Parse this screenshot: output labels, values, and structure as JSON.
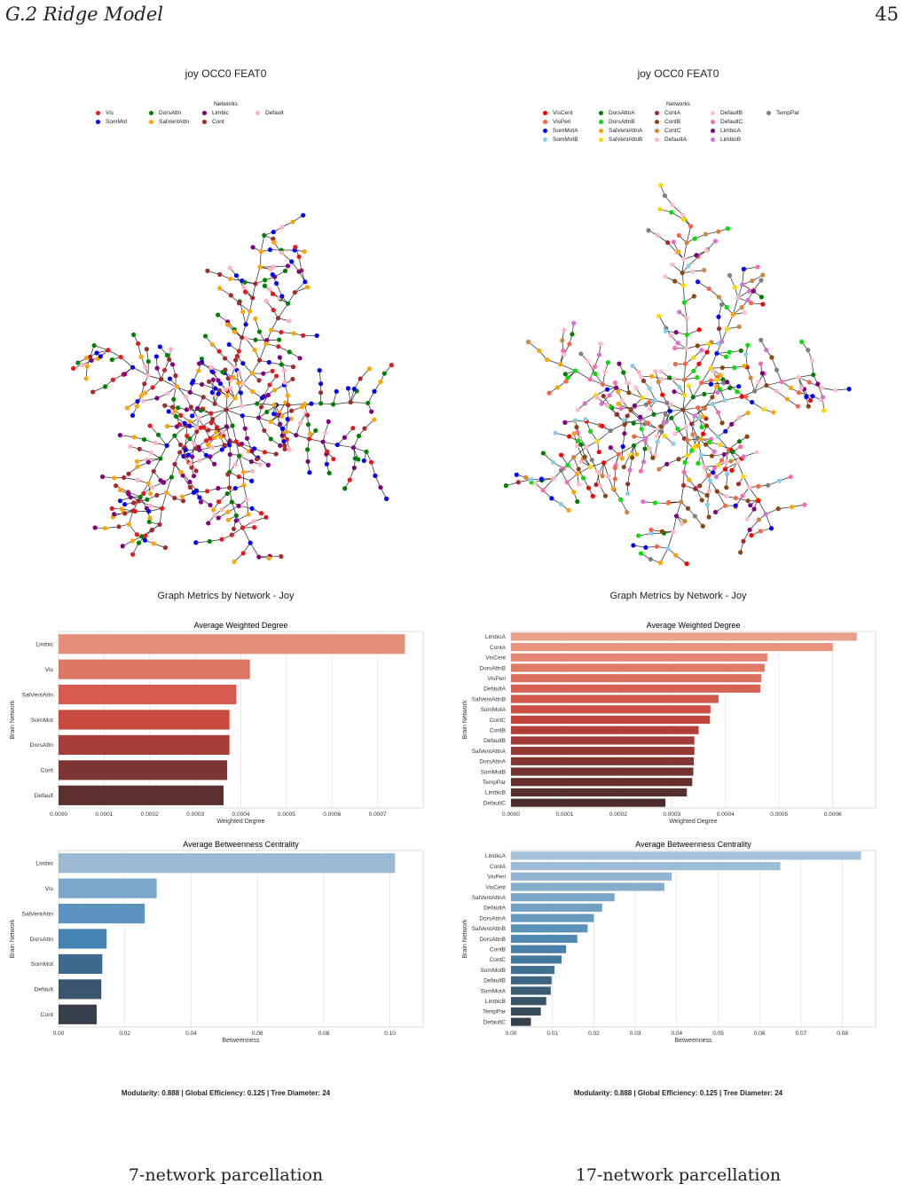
{
  "header": {
    "section": "G.2   Ridge Model",
    "page_number": "45"
  },
  "panels": [
    {
      "graph_title": "joy OCC0 FEAT0",
      "legend_title": "Networks",
      "legend": [
        {
          "label": "Vis",
          "color": "#e41a1c"
        },
        {
          "label": "SomMot",
          "color": "#0000ff"
        },
        {
          "label": "DorsAttn",
          "color": "#008000"
        },
        {
          "label": "SalVentAttn",
          "color": "#ffa500"
        },
        {
          "label": "Limbic",
          "color": "#800080"
        },
        {
          "label": "Cont",
          "color": "#a52a2a"
        },
        {
          "label": "Default",
          "color": "#ffb6c1"
        }
      ],
      "suptitle": "Graph Metrics by Network - Joy",
      "stats": "Modularity: 0.888    |    Global Efficiency: 0.125    |    Tree Diameter: 24",
      "caption": "7-network parcellation"
    },
    {
      "graph_title": "joy OCC0 FEAT0",
      "legend_title": "Networks",
      "legend": [
        {
          "label": "VisCent",
          "color": "#ff0000"
        },
        {
          "label": "VisPeri",
          "color": "#ff6347"
        },
        {
          "label": "SomMotA",
          "color": "#0000ff"
        },
        {
          "label": "SomMotB",
          "color": "#87ceeb"
        },
        {
          "label": "DorsAttnA",
          "color": "#008000"
        },
        {
          "label": "DorsAttnB",
          "color": "#00e000"
        },
        {
          "label": "SalVentAttnA",
          "color": "#ffa500"
        },
        {
          "label": "SalVentAttnB",
          "color": "#ffd700"
        },
        {
          "label": "ContA",
          "color": "#a52a2a"
        },
        {
          "label": "ContB",
          "color": "#8b4513"
        },
        {
          "label": "ContC",
          "color": "#cd853f"
        },
        {
          "label": "DefaultA",
          "color": "#ffb6c1"
        },
        {
          "label": "DefaultB",
          "color": "#ffc0cb"
        },
        {
          "label": "DefaultC",
          "color": "#ff69b4"
        },
        {
          "label": "LimbicA",
          "color": "#800080"
        },
        {
          "label": "LimbicB",
          "color": "#da70d6"
        },
        {
          "label": "TempPar",
          "color": "#808080"
        }
      ],
      "suptitle": "Graph Metrics by Network - Joy",
      "stats": "Modularity: 0.888    |    Global Efficiency: 0.125    |    Tree Diameter: 24",
      "caption": "17-network parcellation"
    }
  ],
  "chart_data": [
    {
      "type": "bar",
      "orientation": "horizontal",
      "title": "Average Weighted Degree",
      "xlabel": "Weighted Degree",
      "ylabel": "Brain Network",
      "categories": [
        "Limbic",
        "Vis",
        "SalVentAttn",
        "SomMot",
        "DorsAttn",
        "Cont",
        "Default"
      ],
      "values": [
        0.00076,
        0.00042,
        0.00039,
        0.000375,
        0.000375,
        0.00037,
        0.000362
      ],
      "xlim": [
        0,
        0.0008
      ],
      "xticks": [
        "0.0000",
        "0.0001",
        "0.0002",
        "0.0003",
        "0.0004",
        "0.0005",
        "0.0006",
        "0.0007"
      ],
      "palette": [
        "#e48f79",
        "#dd7563",
        "#d65b4e",
        "#c94a3e",
        "#a63d39",
        "#7d3632",
        "#5b2f2d"
      ]
    },
    {
      "type": "bar",
      "orientation": "horizontal",
      "title": "Average Betweenness Centrality",
      "xlabel": "Betweenness",
      "ylabel": "Brain Network",
      "categories": [
        "Limbic",
        "Vis",
        "SalVentAttn",
        "DorsAttn",
        "SomMot",
        "Default",
        "Cont"
      ],
      "values": [
        0.1015,
        0.0296,
        0.026,
        0.0145,
        0.0132,
        0.0129,
        0.0115
      ],
      "xlim": [
        0,
        0.11
      ],
      "xticks": [
        "0.00",
        "0.02",
        "0.04",
        "0.06",
        "0.08",
        "0.10"
      ],
      "palette": [
        "#9ab9d3",
        "#7ba7cb",
        "#5b93c0",
        "#4782b4",
        "#3e6a8f",
        "#3a566f",
        "#373f4a"
      ]
    },
    {
      "type": "bar",
      "orientation": "horizontal",
      "title": "Average Weighted Degree",
      "xlabel": "Weighted Degree",
      "ylabel": "Brain Network",
      "categories": [
        "LimbicA",
        "ContA",
        "VisCent",
        "DorsAttnB",
        "VisPeri",
        "DefaultA",
        "SalVentAttnB",
        "SomMotA",
        "ContC",
        "ContB",
        "DefaultB",
        "SalVentAttnA",
        "DorsAttnA",
        "SomMotB",
        "TempPar",
        "LimbicB",
        "DefaultC"
      ],
      "values": [
        0.000645,
        0.0006,
        0.000478,
        0.000473,
        0.000467,
        0.000465,
        0.000387,
        0.000372,
        0.000371,
        0.00035,
        0.000342,
        0.000342,
        0.000341,
        0.00034,
        0.000338,
        0.000328,
        0.000288
      ],
      "xlim": [
        0,
        0.00068
      ],
      "xticks": [
        "0.0000",
        "0.0001",
        "0.0002",
        "0.0003",
        "0.0004",
        "0.0005",
        "0.0006"
      ],
      "palette": [
        "#eba08a",
        "#e7937e",
        "#e38672",
        "#df7a67",
        "#db6e5d",
        "#d66253",
        "#d1574a",
        "#cb4c42",
        "#c1453d",
        "#b23f39",
        "#a33b36",
        "#933833",
        "#833530",
        "#73322e",
        "#64302c",
        "#562e2b",
        "#4a2b2a"
      ]
    },
    {
      "type": "bar",
      "orientation": "horizontal",
      "title": "Average Betweenness Centrality",
      "xlabel": "Betweenness",
      "ylabel": "Brain Network",
      "categories": [
        "LimbicA",
        "ContA",
        "VisPeri",
        "VisCent",
        "SalVentAttnA",
        "DefaultA",
        "DorsAttnA",
        "SalVentAttnB",
        "DorsAttnB",
        "ContB",
        "ContC",
        "SomMotB",
        "DefaultB",
        "SomMotA",
        "LimbicB",
        "TempPar",
        "DefaultC"
      ],
      "values": [
        0.0845,
        0.065,
        0.0388,
        0.037,
        0.025,
        0.022,
        0.02,
        0.0185,
        0.016,
        0.0133,
        0.0122,
        0.0105,
        0.0098,
        0.0096,
        0.0085,
        0.0072,
        0.0048
      ],
      "xlim": [
        0,
        0.088
      ],
      "xticks": [
        "0.00",
        "0.01",
        "0.02",
        "0.03",
        "0.04",
        "0.05",
        "0.06",
        "0.07",
        "0.08"
      ],
      "palette": [
        "#a5c2da",
        "#9bbbd6",
        "#91b4d1",
        "#86adcc",
        "#7ca6c7",
        "#71a0c3",
        "#6799be",
        "#5c91b8",
        "#5289b1",
        "#4a80a8",
        "#44789c",
        "#416f8f",
        "#3e6682",
        "#3b5d74",
        "#385467",
        "#364b59",
        "#33414b"
      ]
    }
  ]
}
